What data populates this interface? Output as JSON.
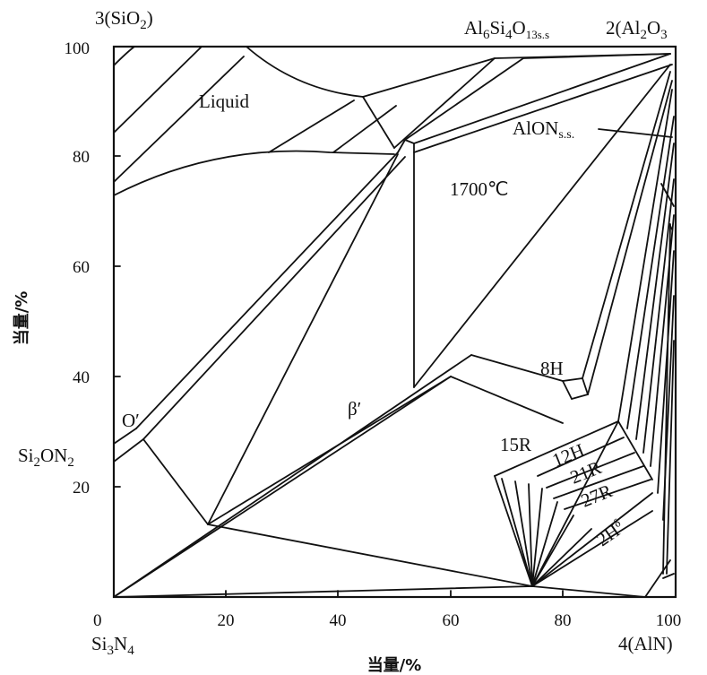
{
  "chart_data": {
    "type": "phase-diagram",
    "temperature_label": "1700℃",
    "corners": {
      "top_left": {
        "base": "3(SiO",
        "sub": "2",
        "tail": ")"
      },
      "top_mid": {
        "base": "Al",
        "sub1": "6",
        "mid": "Si",
        "sub2": "4",
        "mid2": "O",
        "sub3": "13s.s"
      },
      "top_right": {
        "base": "2(Al",
        "sub": "2",
        "tail": "O",
        "sub2": "3"
      },
      "bottom_left": {
        "base": "Si",
        "sub": "3",
        "tail": "N",
        "sub2": "4"
      },
      "bottom_right": "4(AlN)"
    },
    "y_axis": {
      "label": "当量/%",
      "ticks": [
        "100",
        "80",
        "60",
        "40",
        "20"
      ]
    },
    "x_axis": {
      "label": "当量/%",
      "ticks": [
        "0",
        "20",
        "40",
        "60",
        "80",
        "100"
      ]
    },
    "phases": {
      "liquid": "Liquid",
      "alon": {
        "base": "AlON",
        "sub": "s.s."
      },
      "o_prime": "O′",
      "si2on2": {
        "base": "Si",
        "sub": "2",
        "tail": "ON",
        "sub2": "2"
      },
      "beta_prime": "β′",
      "h8": "8H",
      "r15": "15R",
      "h12": "12H",
      "r21": "21R",
      "r27": "27R",
      "h2": {
        "base": "2H",
        "sup": "δ"
      }
    }
  }
}
